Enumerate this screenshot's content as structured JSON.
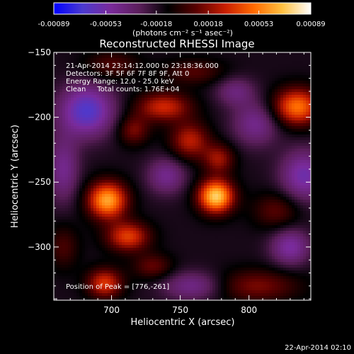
{
  "chart_data": {
    "type": "heatmap",
    "title": "Reconstructed RHESSI Image",
    "xlabel": "Heliocentric X (arcsec)",
    "ylabel": "Heliocentric Y (arcsec)",
    "xlim": [
      658,
      845
    ],
    "ylim": [
      -341,
      -150
    ],
    "x_ticks": [
      700,
      750,
      800
    ],
    "y_ticks": [
      -150,
      -200,
      -250,
      -300
    ],
    "colorbar": {
      "range": [
        -0.00089,
        0.00089
      ],
      "tick_values": [
        -0.00089,
        -0.00053,
        -0.00018,
        0.00018,
        0.00053,
        0.00089
      ],
      "tick_labels": [
        "-0.00089",
        "-0.00053",
        "-0.00018",
        "0.00018",
        "0.00053",
        "0.00089"
      ],
      "unit_label": "(photons cm⁻² s⁻¹ asec⁻²)",
      "colors": [
        "#0000ff",
        "#4b3ad0",
        "#7a2a9a",
        "#5a1e5a",
        "#000000",
        "#5a0000",
        "#c81e00",
        "#ff6a00",
        "#ffc040",
        "#ffffff"
      ]
    },
    "annotations": [
      "21-Apr-2014 23:14:12.000 to 23:18:36.000",
      "Detectors: 3F 5F 6F 7F 8F 9F, Att 0",
      "Energy Range: 12.0 - 25.0 keV",
      "Clean     Total counts: 1.76E+04"
    ],
    "peak_label": "Position of Peak = [776,-261]",
    "peak": [
      776,
      -261
    ],
    "sources": [
      {
        "x": 776,
        "y": -261,
        "value": 0.00089,
        "sx": 9,
        "sy": 9
      },
      {
        "x": 697,
        "y": -264,
        "value": 0.00078,
        "sx": 10,
        "sy": 10
      },
      {
        "x": 712,
        "y": -292,
        "value": 0.00052,
        "sx": 11,
        "sy": 8
      },
      {
        "x": 695,
        "y": -328,
        "value": 0.0005,
        "sx": 9,
        "sy": 8
      },
      {
        "x": 835,
        "y": -192,
        "value": 0.00066,
        "sx": 12,
        "sy": 10
      },
      {
        "x": 738,
        "y": -192,
        "value": 0.00046,
        "sx": 14,
        "sy": 8
      },
      {
        "x": 757,
        "y": -218,
        "value": 0.00042,
        "sx": 10,
        "sy": 10
      },
      {
        "x": 778,
        "y": -232,
        "value": 0.00036,
        "sx": 8,
        "sy": 8
      },
      {
        "x": 716,
        "y": -210,
        "value": 0.0003,
        "sx": 8,
        "sy": 8
      },
      {
        "x": 730,
        "y": -315,
        "value": 0.00026,
        "sx": 10,
        "sy": 7
      },
      {
        "x": 805,
        "y": -330,
        "value": 0.0003,
        "sx": 22,
        "sy": 9
      },
      {
        "x": 665,
        "y": -300,
        "value": 0.0002,
        "sx": 8,
        "sy": 12
      },
      {
        "x": 700,
        "y": -160,
        "value": 0.00022,
        "sx": 14,
        "sy": 8
      },
      {
        "x": 760,
        "y": -165,
        "value": 0.00022,
        "sx": 16,
        "sy": 7
      },
      {
        "x": 820,
        "y": -272,
        "value": 0.00024,
        "sx": 12,
        "sy": 10
      },
      {
        "x": 682,
        "y": -195,
        "value": -0.00052,
        "sx": 14,
        "sy": 14
      },
      {
        "x": 740,
        "y": -245,
        "value": -0.0003,
        "sx": 10,
        "sy": 10
      },
      {
        "x": 840,
        "y": -245,
        "value": -0.0004,
        "sx": 12,
        "sy": 14
      },
      {
        "x": 805,
        "y": -205,
        "value": -0.0003,
        "sx": 12,
        "sy": 12
      },
      {
        "x": 760,
        "y": -330,
        "value": -0.0003,
        "sx": 16,
        "sy": 8
      },
      {
        "x": 830,
        "y": -300,
        "value": -0.00036,
        "sx": 10,
        "sy": 10
      },
      {
        "x": 665,
        "y": -240,
        "value": -0.0003,
        "sx": 8,
        "sy": 18
      },
      {
        "x": 790,
        "y": -180,
        "value": -0.00024,
        "sx": 10,
        "sy": 8
      }
    ],
    "background_value": -0.00015
  },
  "footer_timestamp": "22-Apr-2014 02:10"
}
